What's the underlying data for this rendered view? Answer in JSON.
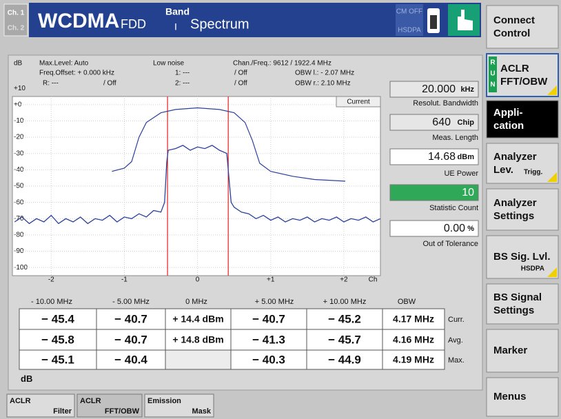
{
  "header": {
    "channels": [
      "Ch. 1",
      "Ch. 2"
    ],
    "title": "WCDMA",
    "fdd": "FDD",
    "band_label": "Band",
    "band": "I",
    "mode": "Spectrum",
    "cm": "CM OFF",
    "hsdpa": "HSDPA"
  },
  "softkeys": [
    {
      "lines": [
        "Connect",
        "Control"
      ]
    },
    {
      "lines": [
        "ACLR",
        "FFT/OBW"
      ],
      "run": [
        "R",
        "U",
        "N"
      ]
    },
    {
      "lines": [
        "Appli-",
        "cation"
      ]
    },
    {
      "lines": [
        "Analyzer",
        "Lev."
      ],
      "sub": "Trigg."
    },
    {
      "lines": [
        "Analyzer",
        "Settings"
      ]
    },
    {
      "lines": [
        "BS Sig. Lvl."
      ],
      "sub": "HSDPA"
    },
    {
      "lines": [
        "BS Signal",
        "Settings"
      ]
    },
    {
      "lines": [
        "Marker"
      ]
    },
    {
      "lines": [
        "Menus"
      ]
    }
  ],
  "info": {
    "max_level": "Max.Level: Auto",
    "freq_offset": "Freq.Offset: + 0.000 kHz",
    "low_noise": "Low noise",
    "chan_freq": "Chan./Freq.: 9612 / 1922.4 MHz",
    "m1": "1: ---",
    "m1_state": "/ Off",
    "obw_l": "OBW l.: - 2.07 MHz",
    "ref": "R: ---",
    "ref_state": "/ Off",
    "m2": "2: ---",
    "m2_state": "/ Off",
    "obw_r": "OBW r.: 2.10 MHz",
    "current": "Current"
  },
  "chart_data": {
    "type": "line",
    "y_unit": "dB",
    "x_unit": "Ch",
    "xlim": [
      -2.53,
      2.5
    ],
    "ylim": [
      -105,
      5
    ],
    "xticks": [
      -2,
      -1,
      0,
      {
        "value": 1,
        "label": "+1"
      },
      {
        "value": 2,
        "label": "+2"
      }
    ],
    "yticks": [
      {
        "value": 10,
        "label": "+10"
      },
      {
        "value": 0,
        "label": "+0"
      },
      -10,
      -20,
      -30,
      -40,
      -50,
      -60,
      -70,
      -80,
      -90,
      -100
    ],
    "grid": true,
    "obw_lines": {
      "color": "#e02020",
      "x": [
        -0.41,
        0.42
      ]
    },
    "series": [
      {
        "name": "Max",
        "color": "#2a3f9c",
        "x": [
          -1.17,
          -1.0,
          -0.9,
          -0.8,
          -0.7,
          -0.5,
          -0.3,
          0,
          0.3,
          0.5,
          0.65,
          0.75,
          0.85,
          1.0,
          1.3,
          1.6,
          2.02
        ],
        "values": [
          -41,
          -39,
          -35,
          -20,
          -11,
          -5,
          -3,
          -2,
          -3,
          -5,
          -11,
          -22,
          -36,
          -41,
          -44,
          -46,
          -47
        ]
      },
      {
        "name": "Current",
        "color": "#2a3f9c",
        "x": [
          -2.5,
          -2.4,
          -2.3,
          -2.2,
          -2.1,
          -2.0,
          -1.9,
          -1.8,
          -1.7,
          -1.6,
          -1.5,
          -1.4,
          -1.3,
          -1.2,
          -1.1,
          -1.0,
          -0.9,
          -0.8,
          -0.7,
          -0.6,
          -0.5,
          -0.45,
          -0.42,
          -0.4,
          -0.3,
          -0.2,
          -0.1,
          0,
          0.1,
          0.2,
          0.3,
          0.4,
          0.43,
          0.46,
          0.5,
          0.6,
          0.7,
          0.8,
          0.9,
          1.0,
          1.1,
          1.2,
          1.3,
          1.4,
          1.5,
          1.6,
          1.7,
          1.8,
          1.9,
          2.0,
          2.1,
          2.2,
          2.3,
          2.4,
          2.5
        ],
        "values": [
          -72,
          -69,
          -73,
          -70,
          -72,
          -68,
          -73,
          -70,
          -72,
          -69,
          -73,
          -70,
          -71,
          -68,
          -72,
          -69,
          -70,
          -67,
          -69,
          -65,
          -66,
          -60,
          -35,
          -28,
          -27,
          -25,
          -28,
          -26,
          -27,
          -25,
          -28,
          -30,
          -45,
          -60,
          -63,
          -66,
          -67,
          -70,
          -68,
          -71,
          -69,
          -72,
          -70,
          -71,
          -69,
          -72,
          -70,
          -71,
          -69,
          -72,
          -70,
          -71,
          -69,
          -72,
          -70
        ]
      }
    ]
  },
  "readouts": [
    {
      "value": "20.000",
      "unit": "kHz",
      "label": "Resolut. Bandwidth"
    },
    {
      "value": "640",
      "unit": "Chip",
      "label": "Meas. Length"
    },
    {
      "value": "14.68",
      "unit": "dBm",
      "label": "UE Power"
    },
    {
      "value": "10",
      "label": "Statistic Count"
    },
    {
      "value": "0.00",
      "unit": "%",
      "label": "Out of Tolerance"
    }
  ],
  "table": {
    "headers": [
      "- 10.00 MHz",
      "- 5.00 MHz",
      "0 MHz",
      "+ 5.00 MHz",
      "+ 10.00 MHz",
      "OBW"
    ],
    "rows": [
      {
        "cells": [
          "− 45.4",
          "− 40.7",
          "+ 14.4 dBm",
          "− 40.7",
          "− 45.2",
          "4.17 MHz"
        ],
        "label": "Curr."
      },
      {
        "cells": [
          "− 45.8",
          "− 40.7",
          "+ 14.8 dBm",
          "− 41.3",
          "− 45.7",
          "4.16 MHz"
        ],
        "label": "Avg."
      },
      {
        "cells": [
          "− 45.1",
          "− 40.4",
          null,
          "− 40.3",
          "− 44.9",
          "4.19 MHz"
        ],
        "label": "Max."
      }
    ],
    "footnote": [
      "All Values in ",
      "dB"
    ]
  },
  "tabs": [
    [
      "ACLR",
      "Filter"
    ],
    [
      "ACLR",
      "FFT/OBW"
    ],
    [
      "Emission",
      "Mask"
    ]
  ]
}
